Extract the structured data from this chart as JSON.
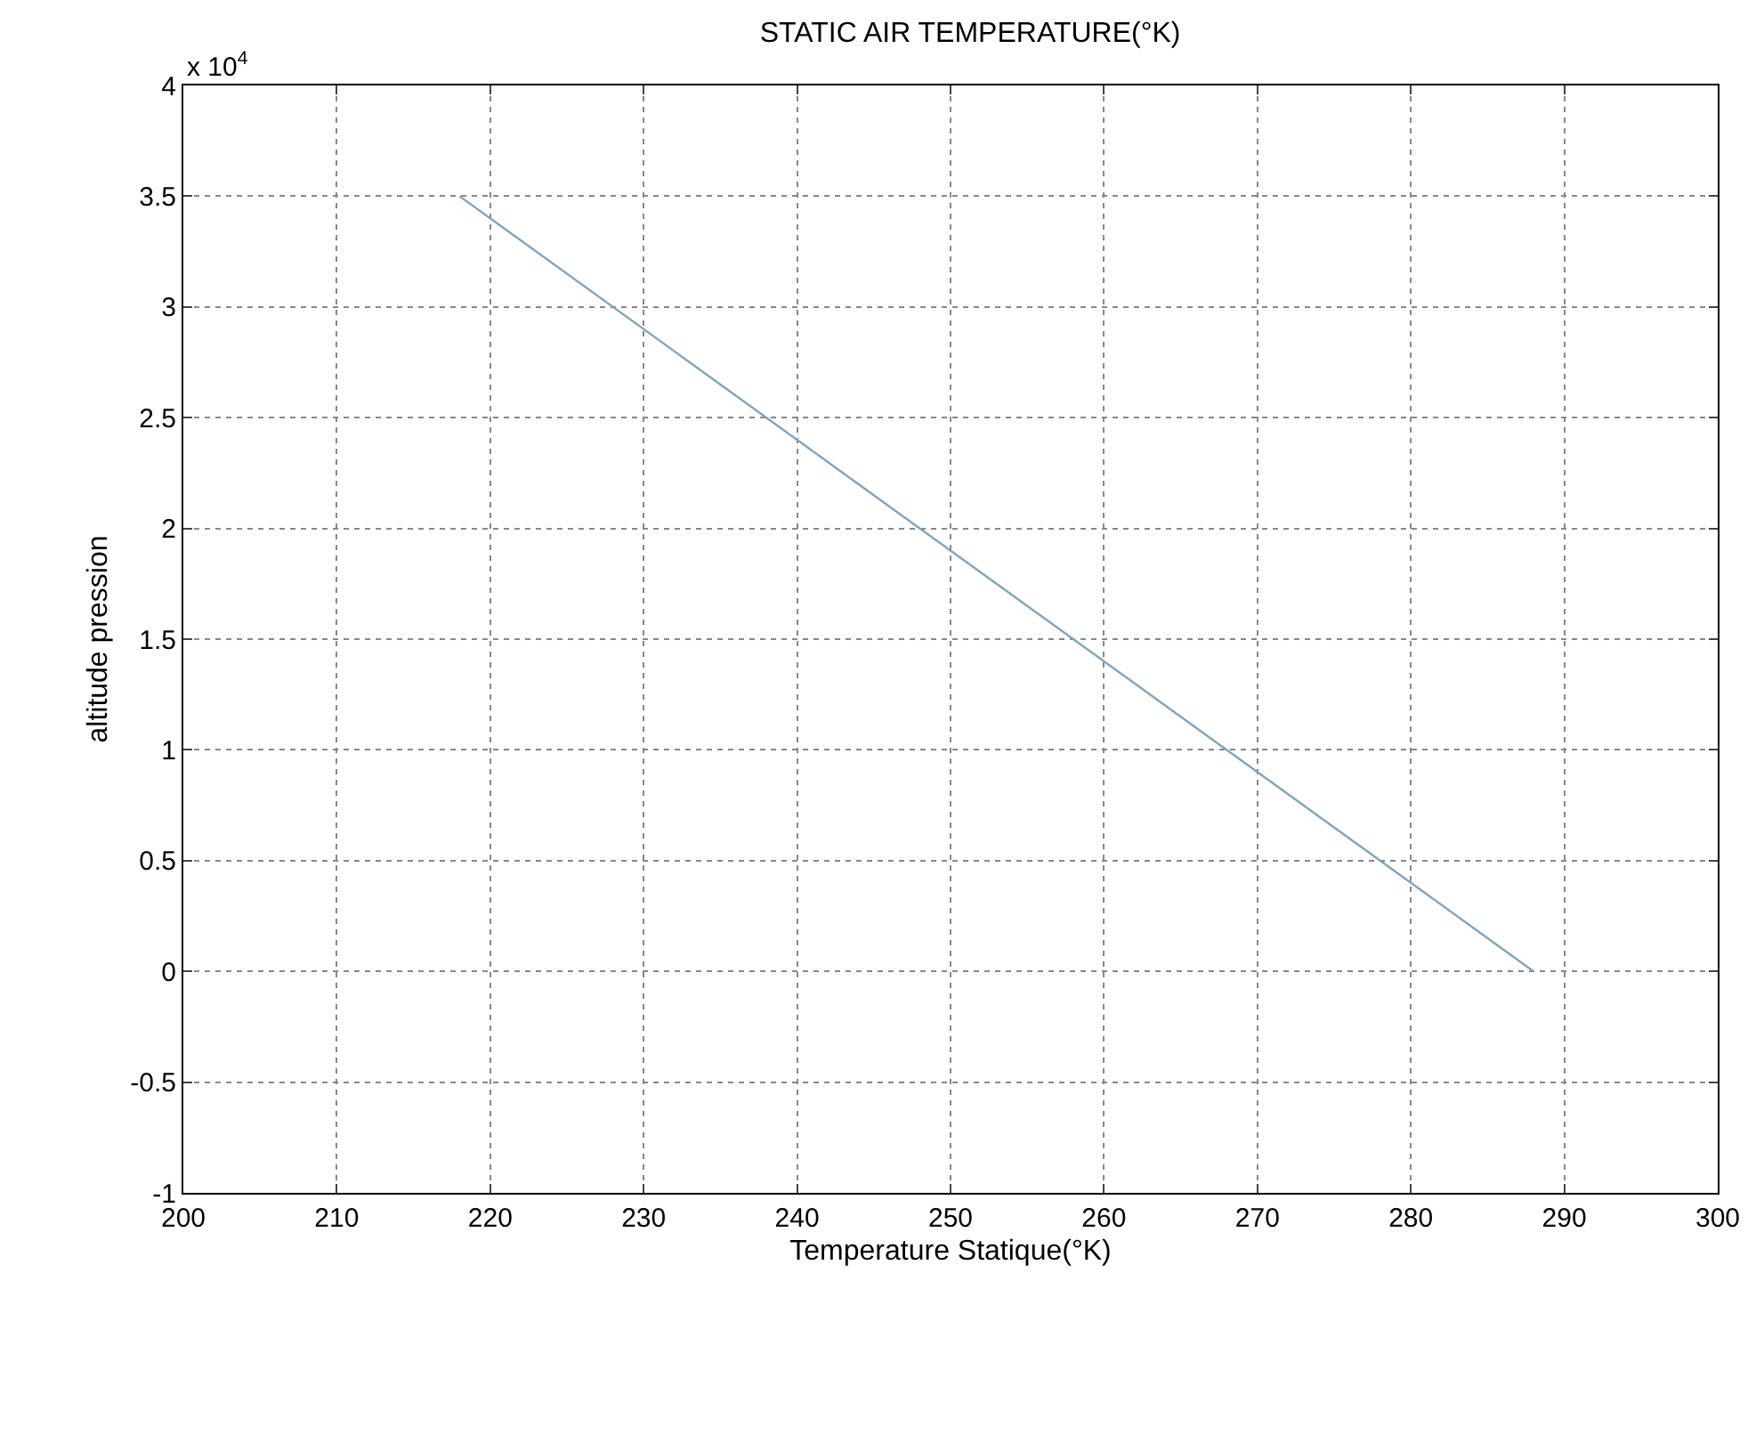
{
  "chart_data": {
    "type": "line",
    "title": "STATIC AIR TEMPERATURE(°K)",
    "xlabel": "Temperature Statique(°K)",
    "ylabel": "altitude pression",
    "annotations": [
      "x 10$^{4}$"
    ],
    "series": [
      {
        "color": "#7aa6c2",
        "x": [
          288,
          218
        ],
        "values": [
          0,
          3.5
        ]
      }
    ],
    "xlim": [
      200,
      300
    ],
    "xticks": [
      200,
      210,
      220,
      230,
      240,
      250,
      260,
      270,
      280,
      290,
      300
    ],
    "ylim": [
      -1,
      4
    ],
    "yticks": [
      -1,
      -0.5,
      0,
      0.5,
      1,
      1.5,
      2,
      2.5,
      3,
      3.5,
      4
    ],
    "grid": true,
    "line_style": "solid"
  }
}
